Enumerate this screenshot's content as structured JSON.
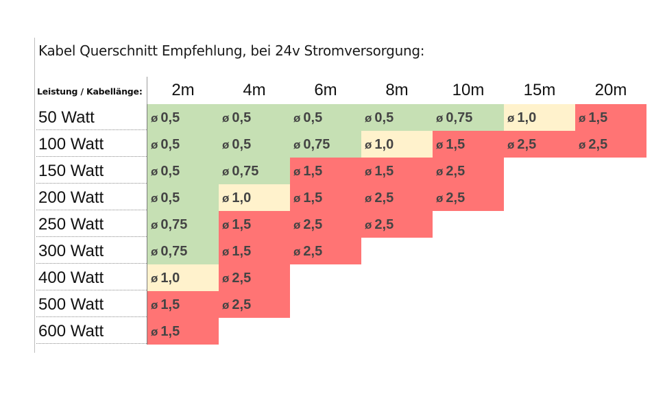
{
  "title": "Kabel Querschnitt Empfehlung, bei 24v Stromversorgung:",
  "corner_label": "Leistung / Kabellänge:",
  "diameter_symbol": "ø",
  "colors": {
    "green": "#c6e0b4",
    "yellow": "#fff2cc",
    "red": "#ff7474"
  },
  "columns": [
    "2m",
    "4m",
    "6m",
    "8m",
    "10m",
    "15m",
    "20m"
  ],
  "rows": [
    {
      "label": "50 Watt",
      "cells": [
        {
          "v": "0,5",
          "c": "green"
        },
        {
          "v": "0,5",
          "c": "green"
        },
        {
          "v": "0,5",
          "c": "green"
        },
        {
          "v": "0,5",
          "c": "green"
        },
        {
          "v": "0,75",
          "c": "green"
        },
        {
          "v": "1,0",
          "c": "yellow"
        },
        {
          "v": "1,5",
          "c": "red"
        }
      ]
    },
    {
      "label": "100 Watt",
      "cells": [
        {
          "v": "0,5",
          "c": "green"
        },
        {
          "v": "0,5",
          "c": "green"
        },
        {
          "v": "0,75",
          "c": "green"
        },
        {
          "v": "1,0",
          "c": "yellow"
        },
        {
          "v": "1,5",
          "c": "red"
        },
        {
          "v": "2,5",
          "c": "red"
        },
        {
          "v": "2,5",
          "c": "red"
        }
      ]
    },
    {
      "label": "150 Watt",
      "cells": [
        {
          "v": "0,5",
          "c": "green"
        },
        {
          "v": "0,75",
          "c": "green"
        },
        {
          "v": "1,5",
          "c": "red"
        },
        {
          "v": "1,5",
          "c": "red"
        },
        {
          "v": "2,5",
          "c": "red"
        }
      ]
    },
    {
      "label": "200 Watt",
      "cells": [
        {
          "v": "0,5",
          "c": "green"
        },
        {
          "v": "1,0",
          "c": "yellow"
        },
        {
          "v": "1,5",
          "c": "red"
        },
        {
          "v": "2,5",
          "c": "red"
        },
        {
          "v": "2,5",
          "c": "red"
        }
      ]
    },
    {
      "label": "250 Watt",
      "cells": [
        {
          "v": "0,75",
          "c": "green"
        },
        {
          "v": "1,5",
          "c": "red"
        },
        {
          "v": "2,5",
          "c": "red"
        },
        {
          "v": "2,5",
          "c": "red"
        }
      ]
    },
    {
      "label": "300 Watt",
      "cells": [
        {
          "v": "0,75",
          "c": "green"
        },
        {
          "v": "1,5",
          "c": "red"
        },
        {
          "v": "2,5",
          "c": "red"
        }
      ]
    },
    {
      "label": "400 Watt",
      "cells": [
        {
          "v": "1,0",
          "c": "yellow"
        },
        {
          "v": "2,5",
          "c": "red"
        }
      ]
    },
    {
      "label": "500 Watt",
      "cells": [
        {
          "v": "1,5",
          "c": "red"
        },
        {
          "v": "2,5",
          "c": "red"
        }
      ]
    },
    {
      "label": "600 Watt",
      "cells": [
        {
          "v": "1,5",
          "c": "red"
        }
      ]
    }
  ]
}
